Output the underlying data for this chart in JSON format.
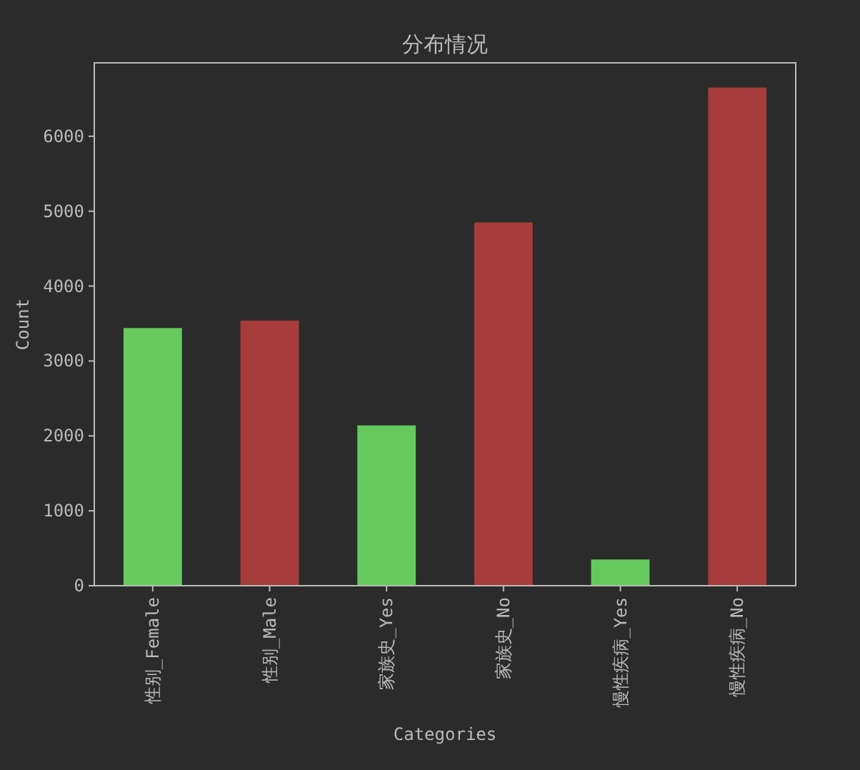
{
  "chart_data": {
    "type": "bar",
    "title": "分布情况",
    "xlabel": "Categories",
    "ylabel": "Count",
    "categories": [
      "性别_Female",
      "性别_Male",
      "家族史_Yes",
      "家族史_No",
      "慢性疾病_Yes",
      "慢性疾病_No"
    ],
    "values": [
      3440,
      3540,
      2140,
      4850,
      350,
      6650
    ],
    "colors": [
      "#66c95e",
      "#a63c3c",
      "#66c95e",
      "#a63c3c",
      "#66c95e",
      "#a63c3c"
    ],
    "ylim": [
      0,
      6980
    ],
    "yticks": [
      0,
      1000,
      2000,
      3000,
      4000,
      5000,
      6000
    ]
  }
}
